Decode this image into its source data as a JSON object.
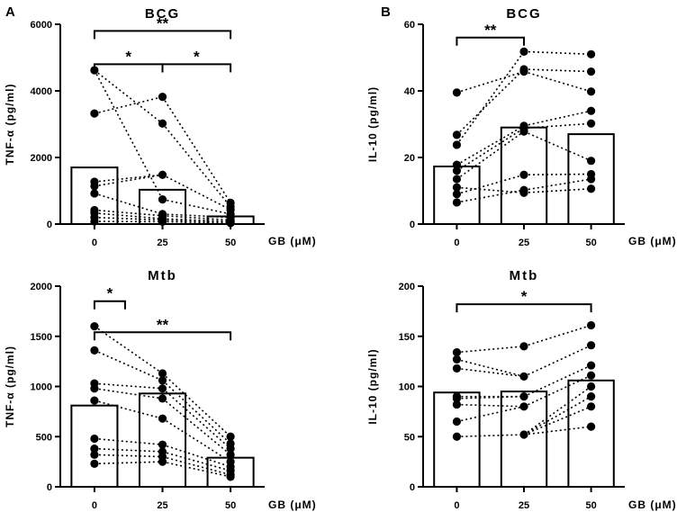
{
  "chart_data": [
    {
      "panel": "A",
      "type": "bar",
      "title": "BCG",
      "ylabel": "TNF-α (pg/ml)",
      "xlabel": "GB (μM)",
      "categories": [
        "0",
        "25",
        "50"
      ],
      "ylim": [
        0,
        6000
      ],
      "yticks": [
        0,
        2000,
        4000,
        6000
      ],
      "bar_values": [
        1700,
        1030,
        230
      ],
      "points": [
        [
          4620,
          3320,
          1270,
          1140,
          920,
          420,
          330,
          200,
          80
        ],
        [
          3820,
          3020,
          1480,
          740,
          300,
          250,
          160,
          120,
          70
        ],
        [
          640,
          520,
          430,
          300,
          200,
          120,
          80,
          60,
          30
        ]
      ],
      "links": [
        [
          0,
          1
        ],
        [
          0,
          3
        ],
        [
          1,
          0
        ],
        [
          2,
          2
        ],
        [
          3,
          2
        ],
        [
          4,
          4
        ],
        [
          5,
          5
        ],
        [
          6,
          6
        ],
        [
          7,
          7
        ],
        [
          8,
          8
        ]
      ],
      "significance": [
        {
          "from": 0,
          "to": 2,
          "label": "**",
          "level": 5800
        },
        {
          "from": 0,
          "to": 1,
          "label": "*",
          "level": 4800
        },
        {
          "from": 1,
          "to": 2,
          "label": "*",
          "level": 4800
        }
      ]
    },
    {
      "panel": "B",
      "type": "bar",
      "title": "BCG",
      "ylabel": "IL-10 (pg/ml)",
      "xlabel": "GB (μM)",
      "categories": [
        "0",
        "25",
        "50"
      ],
      "ylim": [
        0,
        60
      ],
      "yticks": [
        0,
        20,
        40,
        60
      ],
      "bar_values": [
        17.3,
        29.0,
        27.0
      ],
      "points": [
        [
          39.5,
          26.8,
          23.8,
          17.8,
          16.0,
          13.5,
          11.0,
          9.0,
          6.5
        ],
        [
          51.8,
          46.5,
          45.8,
          29.5,
          28.8,
          27.8,
          14.8,
          10.2,
          9.4
        ],
        [
          51.0,
          45.8,
          39.8,
          34.0,
          30.2,
          19.0,
          15.0,
          13.5,
          10.6
        ]
      ],
      "links": [
        [
          0,
          2
        ],
        [
          1,
          1
        ],
        [
          2,
          0
        ],
        [
          3,
          3
        ],
        [
          4,
          4
        ],
        [
          5,
          5
        ],
        [
          6,
          8
        ],
        [
          7,
          6
        ],
        [
          8,
          7
        ]
      ],
      "significance": [
        {
          "from": 0,
          "to": 1,
          "label": "**",
          "level": 56
        }
      ]
    },
    {
      "panel": "",
      "type": "bar",
      "title": "Mtb",
      "ylabel": "TNF-α (pg/ml)",
      "xlabel": "GB (μM)",
      "categories": [
        "0",
        "25",
        "50"
      ],
      "ylim": [
        0,
        2000
      ],
      "yticks": [
        0,
        500,
        1000,
        1500,
        2000
      ],
      "bar_values": [
        810,
        930,
        290
      ],
      "points": [
        [
          1600,
          1360,
          1030,
          980,
          860,
          480,
          380,
          320,
          230
        ],
        [
          1130,
          1060,
          980,
          880,
          680,
          420,
          350,
          300,
          250
        ],
        [
          500,
          430,
          380,
          320,
          250,
          200,
          160,
          120,
          100
        ]
      ],
      "links": [
        [
          0,
          0
        ],
        [
          1,
          1
        ],
        [
          2,
          2
        ],
        [
          3,
          3
        ],
        [
          4,
          4
        ],
        [
          5,
          5
        ],
        [
          6,
          6
        ],
        [
          7,
          7
        ],
        [
          8,
          8
        ]
      ],
      "significance": [
        {
          "from": 0,
          "to": 0.45,
          "label": "*",
          "level": 1850
        },
        {
          "from": 0,
          "to": 2,
          "label": "**",
          "level": 1540
        }
      ]
    },
    {
      "panel": "",
      "type": "bar",
      "title": "Mtb",
      "ylabel": "IL-10 (pg/ml)",
      "xlabel": "GB (μM)",
      "categories": [
        "0",
        "25",
        "50"
      ],
      "ylim": [
        0,
        200
      ],
      "yticks": [
        0,
        50,
        100,
        150,
        200
      ],
      "bar_values": [
        94,
        95,
        106
      ],
      "points": [
        [
          134,
          127,
          118,
          90,
          88,
          82,
          65,
          50
        ],
        [
          140,
          110,
          90,
          80,
          52
        ],
        [
          161,
          141,
          121,
          111,
          100,
          90,
          80,
          60
        ]
      ],
      "links": [
        [
          0,
          0
        ],
        [
          1,
          1
        ],
        [
          2,
          3
        ],
        [
          3,
          2
        ],
        [
          4,
          4
        ],
        [
          5,
          5
        ],
        [
          6,
          6
        ],
        [
          7,
          7
        ]
      ],
      "link_targets": [
        [
          0,
          0
        ],
        [
          1,
          1
        ],
        [
          2,
          1
        ],
        [
          3,
          2
        ],
        [
          4,
          2
        ],
        [
          5,
          3
        ],
        [
          6,
          3
        ],
        [
          7,
          4
        ]
      ],
      "significance": [
        {
          "from": 0,
          "to": 2,
          "label": "*",
          "level": 182
        }
      ]
    }
  ]
}
